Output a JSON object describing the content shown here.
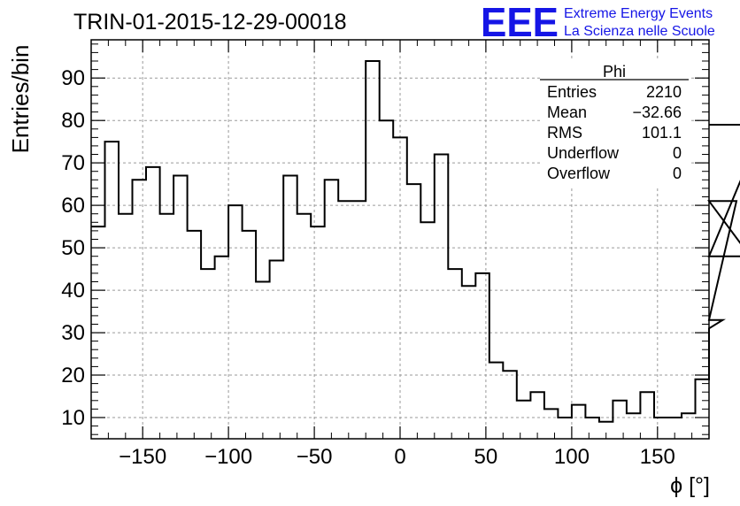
{
  "chart_data": {
    "type": "bar",
    "title": "TRIN-01-2015-12-29-00018",
    "xlabel": "ϕ [°]",
    "ylabel": "Entries/bin",
    "xlim": [
      -180,
      180
    ],
    "ylim": [
      5,
      99
    ],
    "bin_width": 8,
    "grid": true,
    "xticks": [
      -150,
      -100,
      -50,
      0,
      50,
      100,
      150
    ],
    "yticks": [
      10,
      20,
      30,
      40,
      50,
      60,
      70,
      80,
      90
    ],
    "values": [
      55,
      75,
      58,
      66,
      69,
      58,
      67,
      54,
      45,
      48,
      60,
      54,
      42,
      47,
      67,
      58,
      55,
      66,
      61,
      61,
      94,
      80,
      76,
      65,
      56,
      72,
      45,
      41,
      44,
      23,
      21,
      14,
      16,
      12,
      10,
      13,
      10,
      9,
      14,
      11,
      16,
      10,
      10,
      11,
      19,
      31,
      33,
      61,
      48,
      79
    ],
    "line_color": "#000000"
  },
  "stats_box": {
    "title": "Phi",
    "rows": [
      {
        "label": "Entries",
        "value": "2210"
      },
      {
        "label": "Mean",
        "value": "−32.66"
      },
      {
        "label": "RMS",
        "value": "101.1"
      },
      {
        "label": "Underflow",
        "value": "0"
      },
      {
        "label": "Overflow",
        "value": "0"
      }
    ]
  },
  "logo": {
    "mark": "EEE",
    "line1": "Extreme Energy Events",
    "line2": "La Scienza nelle Scuole",
    "color": "#1515e6"
  }
}
